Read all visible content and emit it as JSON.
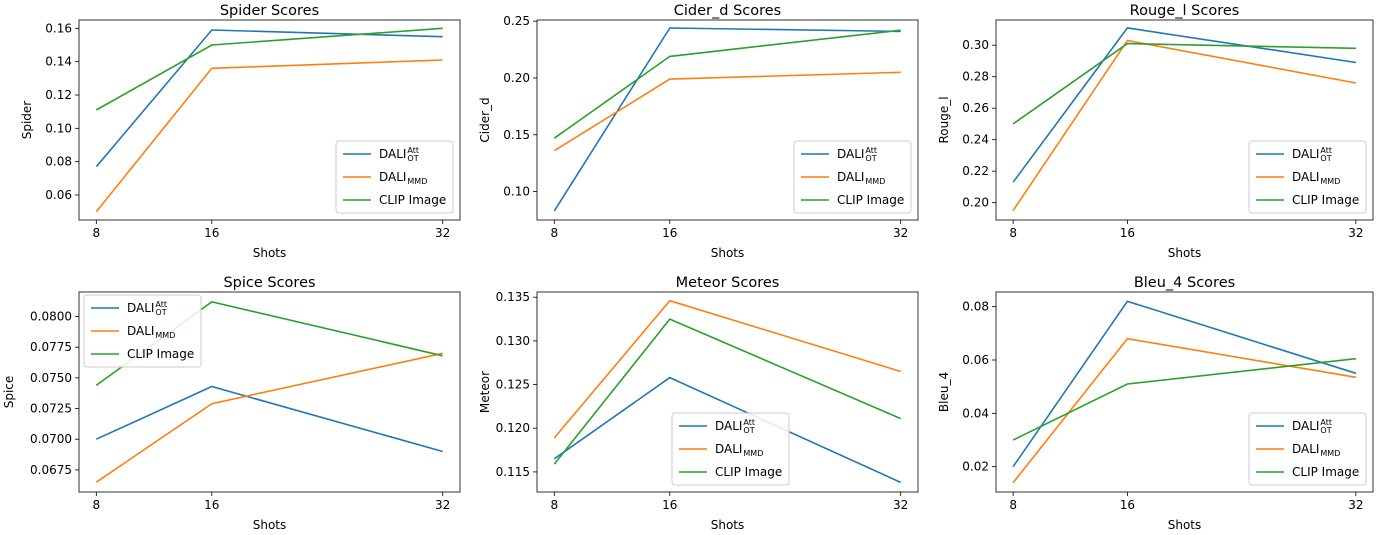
{
  "figure_title": "",
  "colors": {
    "att": "#1f77b4",
    "mmd": "#ff7f0e",
    "clip": "#2ca02c"
  },
  "legend": [
    {
      "key": "att",
      "base": "DALI",
      "sup": "Att",
      "sub": "OT",
      "color": "#1f77b4"
    },
    {
      "key": "mmd",
      "base": "DALI",
      "sup": "",
      "sub": "MMD",
      "color": "#ff7f0e"
    },
    {
      "key": "clip",
      "base": "CLIP Image",
      "sup": "",
      "sub": "",
      "color": "#2ca02c"
    }
  ],
  "chart_data": [
    {
      "type": "line",
      "title": "Spider Scores",
      "xlabel": "Shots",
      "ylabel": "Spider",
      "x": [
        8,
        16,
        32
      ],
      "xticks": [
        "8",
        "16",
        "32"
      ],
      "ylim": [
        0.045,
        0.165
      ],
      "yticks": [
        "0.06",
        "0.08",
        "0.10",
        "0.12",
        "0.14",
        "0.16"
      ],
      "ytick_values": [
        0.06,
        0.08,
        0.1,
        0.12,
        0.14,
        0.16
      ],
      "legend_position": "lower-right",
      "series": [
        {
          "name": "DALI_OT^Att",
          "key": "att",
          "values": [
            0.077,
            0.159,
            0.155
          ]
        },
        {
          "name": "DALI_MMD",
          "key": "mmd",
          "values": [
            0.05,
            0.136,
            0.141
          ]
        },
        {
          "name": "CLIP Image",
          "key": "clip",
          "values": [
            0.111,
            0.15,
            0.16
          ]
        }
      ]
    },
    {
      "type": "line",
      "title": "Cider_d Scores",
      "xlabel": "Shots",
      "ylabel": "Cider_d",
      "x": [
        8,
        16,
        32
      ],
      "xticks": [
        "8",
        "16",
        "32"
      ],
      "ylim": [
        0.075,
        0.251
      ],
      "yticks": [
        "0.10",
        "0.15",
        "0.20",
        "0.25"
      ],
      "ytick_values": [
        0.1,
        0.15,
        0.2,
        0.25
      ],
      "legend_position": "lower-right",
      "series": [
        {
          "name": "DALI_OT^Att",
          "key": "att",
          "values": [
            0.083,
            0.244,
            0.241
          ]
        },
        {
          "name": "DALI_MMD",
          "key": "mmd",
          "values": [
            0.136,
            0.199,
            0.205
          ]
        },
        {
          "name": "CLIP Image",
          "key": "clip",
          "values": [
            0.147,
            0.219,
            0.242
          ]
        }
      ]
    },
    {
      "type": "line",
      "title": "Rouge_l Scores",
      "xlabel": "Shots",
      "ylabel": "Rouge_l",
      "x": [
        8,
        16,
        32
      ],
      "xticks": [
        "8",
        "16",
        "32"
      ],
      "ylim": [
        0.189,
        0.316
      ],
      "yticks": [
        "0.20",
        "0.22",
        "0.24",
        "0.26",
        "0.28",
        "0.30"
      ],
      "ytick_values": [
        0.2,
        0.22,
        0.24,
        0.26,
        0.28,
        0.3
      ],
      "legend_position": "lower-right",
      "series": [
        {
          "name": "DALI_OT^Att",
          "key": "att",
          "values": [
            0.213,
            0.311,
            0.289
          ]
        },
        {
          "name": "DALI_MMD",
          "key": "mmd",
          "values": [
            0.195,
            0.303,
            0.276
          ]
        },
        {
          "name": "CLIP Image",
          "key": "clip",
          "values": [
            0.25,
            0.301,
            0.298
          ]
        }
      ]
    },
    {
      "type": "line",
      "title": "Spice Scores",
      "xlabel": "Shots",
      "ylabel": "Spice",
      "x": [
        8,
        16,
        32
      ],
      "xticks": [
        "8",
        "16",
        "32"
      ],
      "ylim": [
        0.0657,
        0.082
      ],
      "yticks": [
        "0.0675",
        "0.0700",
        "0.0725",
        "0.0750",
        "0.0775",
        "0.0800"
      ],
      "ytick_values": [
        0.0675,
        0.07,
        0.0725,
        0.075,
        0.0775,
        0.08
      ],
      "legend_position": "upper-left",
      "series": [
        {
          "name": "DALI_OT^Att",
          "key": "att",
          "values": [
            0.07,
            0.0743,
            0.069
          ]
        },
        {
          "name": "DALI_MMD",
          "key": "mmd",
          "values": [
            0.0665,
            0.0729,
            0.077
          ]
        },
        {
          "name": "CLIP Image",
          "key": "clip",
          "values": [
            0.0744,
            0.0812,
            0.0768
          ]
        }
      ]
    },
    {
      "type": "line",
      "title": "Meteor Scores",
      "xlabel": "Shots",
      "ylabel": "Meteor",
      "x": [
        8,
        16,
        32
      ],
      "xticks": [
        "8",
        "16",
        "32"
      ],
      "ylim": [
        0.1127,
        0.1356
      ],
      "yticks": [
        "0.115",
        "0.120",
        "0.125",
        "0.130",
        "0.135"
      ],
      "ytick_values": [
        0.115,
        0.12,
        0.125,
        0.13,
        0.135
      ],
      "legend_position": "lower-center",
      "series": [
        {
          "name": "DALI_OT^Att",
          "key": "att",
          "values": [
            0.1165,
            0.1258,
            0.1138
          ]
        },
        {
          "name": "DALI_MMD",
          "key": "mmd",
          "values": [
            0.1189,
            0.1346,
            0.1265
          ]
        },
        {
          "name": "CLIP Image",
          "key": "clip",
          "values": [
            0.1159,
            0.1325,
            0.1211
          ]
        }
      ]
    },
    {
      "type": "line",
      "title": "Bleu_4 Scores",
      "xlabel": "Shots",
      "ylabel": "Bleu_4",
      "x": [
        8,
        16,
        32
      ],
      "xticks": [
        "8",
        "16",
        "32"
      ],
      "ylim": [
        0.0105,
        0.0855
      ],
      "yticks": [
        "0.02",
        "0.04",
        "0.06",
        "0.08"
      ],
      "ytick_values": [
        0.02,
        0.04,
        0.06,
        0.08
      ],
      "legend_position": "lower-right",
      "series": [
        {
          "name": "DALI_OT^Att",
          "key": "att",
          "values": [
            0.02,
            0.082,
            0.055
          ]
        },
        {
          "name": "DALI_MMD",
          "key": "mmd",
          "values": [
            0.014,
            0.068,
            0.0535
          ]
        },
        {
          "name": "CLIP Image",
          "key": "clip",
          "values": [
            0.03,
            0.051,
            0.0605
          ]
        }
      ]
    }
  ]
}
